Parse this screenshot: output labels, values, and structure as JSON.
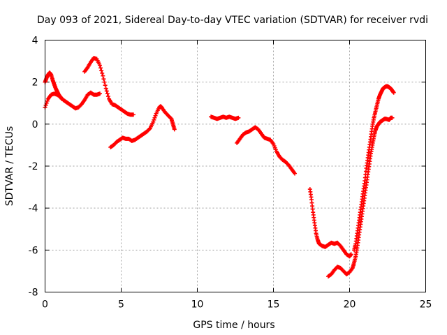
{
  "chart_data": {
    "type": "scatter",
    "title": "Day 093 of 2021, Sidereal Day-to-day VTEC variation (SDTVAR) for receiver rvdi",
    "xlabel": "GPS time / hours",
    "ylabel": "SDTVAR / TECUs",
    "xlim": [
      0,
      25
    ],
    "ylim": [
      -8,
      4
    ],
    "xticks": [
      0,
      5,
      10,
      15,
      20,
      25
    ],
    "yticks": [
      -8,
      -6,
      -4,
      -2,
      0,
      2,
      4
    ],
    "xtick_labels": [
      "0",
      "5",
      "10",
      "15",
      "20",
      "25"
    ],
    "ytick_labels": [
      "-8",
      "-6",
      "-4",
      "-2",
      "0",
      "2",
      "4"
    ],
    "grid": true,
    "marker": "plus",
    "marker_color": "#ff0000",
    "series": [
      {
        "segments": [
          [
            [
              0.0,
              0.8
            ],
            [
              0.2,
              1.2
            ],
            [
              0.4,
              1.4
            ],
            [
              0.6,
              1.45
            ],
            [
              0.8,
              1.4
            ],
            [
              1.0,
              1.3
            ],
            [
              1.2,
              1.15
            ],
            [
              1.4,
              1.05
            ],
            [
              1.6,
              0.95
            ],
            [
              1.8,
              0.85
            ],
            [
              2.0,
              0.75
            ],
            [
              2.2,
              0.8
            ],
            [
              2.4,
              0.95
            ],
            [
              2.6,
              1.15
            ],
            [
              2.8,
              1.4
            ],
            [
              3.0,
              1.5
            ],
            [
              3.2,
              1.4
            ],
            [
              3.4,
              1.4
            ],
            [
              3.6,
              1.45
            ]
          ],
          [
            [
              0.0,
              2.0
            ],
            [
              0.1,
              2.2
            ],
            [
              0.2,
              2.35
            ],
            [
              0.3,
              2.45
            ],
            [
              0.4,
              2.35
            ],
            [
              0.5,
              2.1
            ],
            [
              0.6,
              1.9
            ],
            [
              0.7,
              1.7
            ],
            [
              0.8,
              1.55
            ],
            [
              0.9,
              1.4
            ],
            [
              1.0,
              1.3
            ],
            [
              1.1,
              1.2
            ]
          ],
          [
            [
              2.6,
              2.5
            ],
            [
              2.8,
              2.7
            ],
            [
              3.0,
              2.95
            ],
            [
              3.2,
              3.15
            ],
            [
              3.4,
              3.1
            ],
            [
              3.6,
              2.8
            ],
            [
              3.8,
              2.3
            ],
            [
              4.0,
              1.7
            ],
            [
              4.2,
              1.2
            ],
            [
              4.4,
              0.95
            ],
            [
              4.6,
              0.9
            ],
            [
              4.8,
              0.8
            ],
            [
              5.0,
              0.7
            ],
            [
              5.2,
              0.6
            ],
            [
              5.4,
              0.5
            ],
            [
              5.6,
              0.45
            ],
            [
              5.8,
              0.45
            ]
          ],
          [
            [
              4.3,
              -1.1
            ],
            [
              4.5,
              -1.0
            ],
            [
              4.7,
              -0.85
            ],
            [
              4.9,
              -0.75
            ],
            [
              5.1,
              -0.65
            ],
            [
              5.3,
              -0.7
            ],
            [
              5.5,
              -0.7
            ],
            [
              5.7,
              -0.8
            ],
            [
              5.9,
              -0.75
            ],
            [
              6.1,
              -0.65
            ],
            [
              6.3,
              -0.55
            ],
            [
              6.5,
              -0.45
            ],
            [
              6.7,
              -0.35
            ],
            [
              6.9,
              -0.2
            ],
            [
              7.1,
              0.1
            ],
            [
              7.3,
              0.5
            ],
            [
              7.5,
              0.8
            ],
            [
              7.6,
              0.85
            ],
            [
              7.7,
              0.75
            ],
            [
              7.9,
              0.55
            ],
            [
              8.1,
              0.4
            ],
            [
              8.3,
              0.25
            ],
            [
              8.4,
              0.0
            ],
            [
              8.5,
              -0.25
            ]
          ],
          [
            [
              10.9,
              0.35
            ],
            [
              11.1,
              0.3
            ],
            [
              11.3,
              0.25
            ],
            [
              11.5,
              0.3
            ],
            [
              11.7,
              0.35
            ],
            [
              11.9,
              0.3
            ],
            [
              12.1,
              0.35
            ],
            [
              12.3,
              0.3
            ],
            [
              12.5,
              0.25
            ],
            [
              12.7,
              0.3
            ]
          ],
          [
            [
              12.6,
              -0.9
            ],
            [
              12.8,
              -0.7
            ],
            [
              13.0,
              -0.5
            ],
            [
              13.2,
              -0.4
            ],
            [
              13.4,
              -0.35
            ],
            [
              13.6,
              -0.25
            ],
            [
              13.8,
              -0.15
            ],
            [
              14.0,
              -0.25
            ],
            [
              14.2,
              -0.45
            ],
            [
              14.4,
              -0.65
            ],
            [
              14.6,
              -0.7
            ],
            [
              14.8,
              -0.75
            ],
            [
              15.0,
              -0.95
            ],
            [
              15.2,
              -1.3
            ],
            [
              15.4,
              -1.55
            ],
            [
              15.6,
              -1.7
            ],
            [
              15.8,
              -1.8
            ],
            [
              16.0,
              -1.95
            ],
            [
              16.2,
              -2.15
            ],
            [
              16.4,
              -2.35
            ]
          ],
          [
            [
              17.4,
              -3.1
            ],
            [
              17.5,
              -3.6
            ],
            [
              17.6,
              -4.2
            ],
            [
              17.7,
              -4.7
            ],
            [
              17.8,
              -5.2
            ],
            [
              17.9,
              -5.5
            ],
            [
              18.0,
              -5.7
            ],
            [
              18.2,
              -5.8
            ],
            [
              18.4,
              -5.85
            ],
            [
              18.6,
              -5.75
            ],
            [
              18.8,
              -5.65
            ],
            [
              19.0,
              -5.7
            ],
            [
              19.2,
              -5.65
            ],
            [
              19.4,
              -5.8
            ],
            [
              19.6,
              -6.0
            ],
            [
              19.8,
              -6.2
            ],
            [
              20.0,
              -6.3
            ],
            [
              20.1,
              -6.2
            ]
          ],
          [
            [
              18.6,
              -7.25
            ],
            [
              18.8,
              -7.15
            ],
            [
              19.0,
              -6.95
            ],
            [
              19.2,
              -6.8
            ],
            [
              19.4,
              -6.85
            ],
            [
              19.6,
              -7.0
            ],
            [
              19.8,
              -7.15
            ],
            [
              20.0,
              -7.05
            ],
            [
              20.2,
              -6.85
            ],
            [
              20.3,
              -6.6
            ],
            [
              20.4,
              -6.3
            ],
            [
              20.5,
              -5.9
            ],
            [
              20.6,
              -5.4
            ],
            [
              20.7,
              -4.9
            ],
            [
              20.8,
              -4.4
            ],
            [
              20.9,
              -3.9
            ],
            [
              21.0,
              -3.4
            ],
            [
              21.1,
              -2.9
            ],
            [
              21.2,
              -2.4
            ],
            [
              21.3,
              -1.9
            ],
            [
              21.4,
              -1.4
            ],
            [
              21.5,
              -1.0
            ],
            [
              21.6,
              -0.6
            ],
            [
              21.7,
              -0.3
            ],
            [
              21.8,
              -0.1
            ],
            [
              21.9,
              0.0
            ],
            [
              22.0,
              0.1
            ],
            [
              22.1,
              0.15
            ],
            [
              22.2,
              0.2
            ],
            [
              22.3,
              0.25
            ],
            [
              22.4,
              0.25
            ],
            [
              22.6,
              0.2
            ],
            [
              22.7,
              0.3
            ],
            [
              22.8,
              0.3
            ]
          ],
          [
            [
              20.3,
              -6.0
            ],
            [
              20.4,
              -5.7
            ],
            [
              20.5,
              -5.2
            ],
            [
              20.6,
              -4.7
            ],
            [
              20.7,
              -4.2
            ],
            [
              20.8,
              -3.7
            ],
            [
              20.9,
              -3.2
            ],
            [
              21.0,
              -2.7
            ],
            [
              21.1,
              -2.1
            ],
            [
              21.2,
              -1.6
            ],
            [
              21.3,
              -1.1
            ],
            [
              21.4,
              -0.6
            ],
            [
              21.5,
              -0.1
            ],
            [
              21.6,
              0.3
            ],
            [
              21.7,
              0.6
            ],
            [
              21.8,
              0.9
            ],
            [
              21.9,
              1.2
            ],
            [
              22.0,
              1.4
            ],
            [
              22.1,
              1.55
            ],
            [
              22.2,
              1.7
            ],
            [
              22.3,
              1.75
            ],
            [
              22.4,
              1.8
            ],
            [
              22.5,
              1.8
            ],
            [
              22.6,
              1.75
            ],
            [
              22.7,
              1.7
            ],
            [
              22.8,
              1.6
            ],
            [
              22.9,
              1.5
            ]
          ]
        ]
      }
    ]
  }
}
